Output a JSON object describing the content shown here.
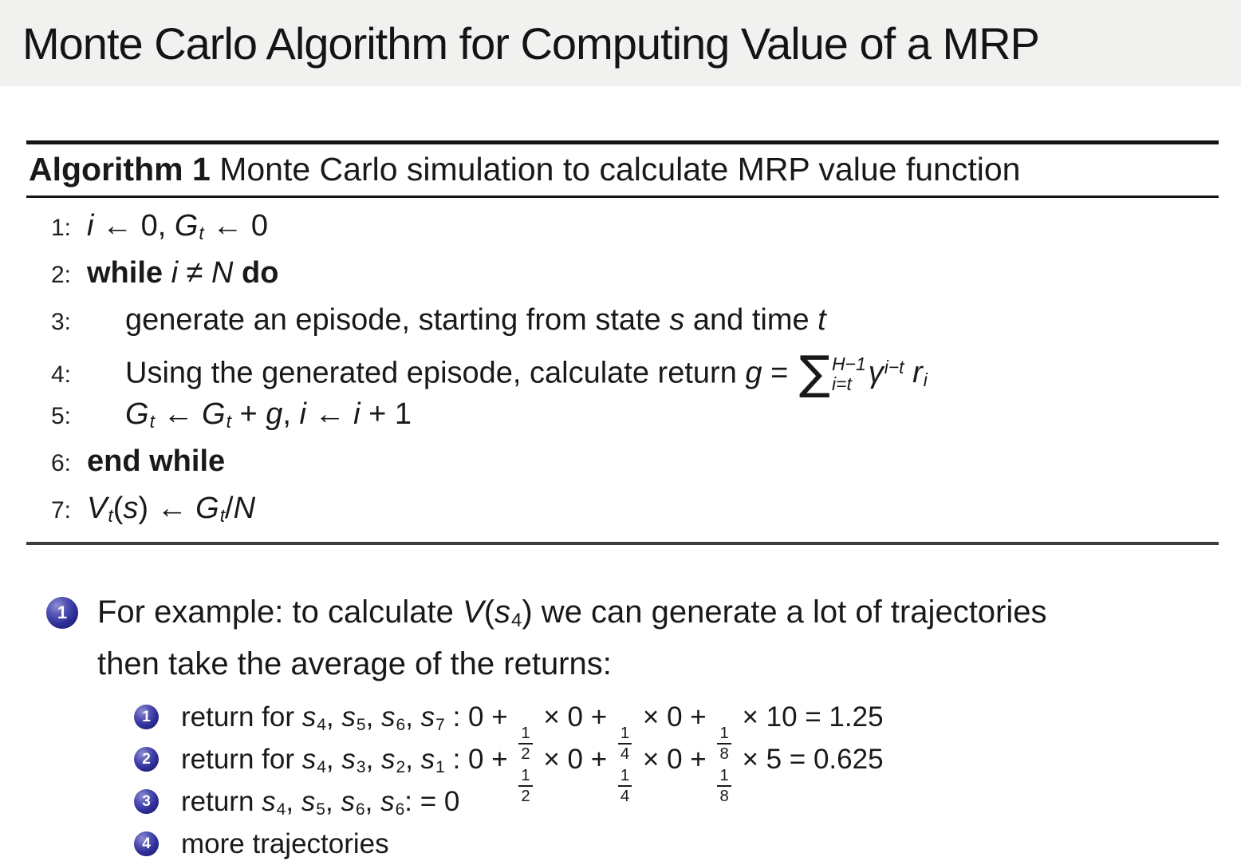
{
  "title": "Monte Carlo Algorithm for Computing Value of a MRP",
  "colors": {
    "page_bg": "#ffffff",
    "title_band_bg": "#f1f1ef",
    "text": "#191919",
    "rule": "#151515",
    "bottom_rule": "#3d3d3d",
    "ball_blue": "#30309c",
    "ball_dark": "#141457",
    "ball_light": "#8f8fd2"
  },
  "symbols": {
    "sum": "∑"
  },
  "algorithm": {
    "caption_bold": "Algorithm 1",
    "caption_rest": " Monte Carlo simulation to calculate MRP value function",
    "lines": [
      {
        "num": "1:",
        "tokens": [
          {
            "t": "i",
            "v": "i"
          },
          {
            "t": "t",
            "v": " ← 0, "
          },
          {
            "t": "sb",
            "b": "G",
            "s": "t"
          },
          {
            "t": "t",
            "v": " ← 0"
          }
        ]
      },
      {
        "num": "2:",
        "tokens": [
          {
            "t": "b",
            "v": "while "
          },
          {
            "t": "i",
            "v": "i"
          },
          {
            "t": "t",
            "v": " ≠ "
          },
          {
            "t": "i",
            "v": "N"
          },
          {
            "t": "b",
            "v": " do"
          }
        ]
      },
      {
        "num": "3:",
        "tokens": [
          {
            "t": "t",
            "v": "generate an episode, starting from state "
          },
          {
            "t": "i",
            "v": "s"
          },
          {
            "t": "t",
            "v": " and time "
          },
          {
            "t": "i",
            "v": "t"
          }
        ]
      },
      {
        "num": "4:",
        "tokens": [
          {
            "t": "t",
            "v": "Using the generated episode, calculate return "
          },
          {
            "t": "i",
            "v": "g"
          },
          {
            "t": "t",
            "v": " = "
          },
          {
            "t": "sum",
            "sup": "H−1",
            "sub": "i=t"
          },
          {
            "t": "sp",
            "b": "γ",
            "s": "i−t"
          },
          {
            "t": "t",
            "v": " "
          },
          {
            "t": "sb",
            "b": "r",
            "s": "i"
          }
        ]
      },
      {
        "num": "5:",
        "tokens": [
          {
            "t": "sb",
            "b": "G",
            "s": "t"
          },
          {
            "t": "t",
            "v": " ← "
          },
          {
            "t": "sb",
            "b": "G",
            "s": "t"
          },
          {
            "t": "t",
            "v": " + "
          },
          {
            "t": "i",
            "v": "g"
          },
          {
            "t": "t",
            "v": ", "
          },
          {
            "t": "i",
            "v": "i"
          },
          {
            "t": "t",
            "v": " ← "
          },
          {
            "t": "i",
            "v": "i"
          },
          {
            "t": "t",
            "v": " + 1"
          }
        ]
      },
      {
        "num": "6:",
        "tokens": [
          {
            "t": "b",
            "v": "end while"
          }
        ]
      },
      {
        "num": "7:",
        "tokens": [
          {
            "t": "sb",
            "b": "V",
            "s": "t"
          },
          {
            "t": "t",
            "v": "("
          },
          {
            "t": "i",
            "v": "s"
          },
          {
            "t": "t",
            "v": ") ← "
          },
          {
            "t": "sb",
            "b": "G",
            "s": "t"
          },
          {
            "t": "t",
            "v": "/"
          },
          {
            "t": "i",
            "v": "N"
          }
        ]
      }
    ]
  },
  "bullets": {
    "main": {
      "marker": "1",
      "tokens": [
        {
          "t": "t",
          "v": "For example: to calculate "
        },
        {
          "t": "i",
          "v": "V"
        },
        {
          "t": "t",
          "v": "("
        },
        {
          "t": "sb",
          "b": "s",
          "s": "4"
        },
        {
          "t": "t",
          "v": ") we can generate a lot of trajectories"
        },
        {
          "t": "br"
        },
        {
          "t": "t",
          "v": "then take the average of the returns:"
        }
      ]
    },
    "sub_items": [
      {
        "marker": "1",
        "tokens": [
          {
            "t": "t",
            "v": "return for "
          },
          {
            "t": "sb",
            "b": "s",
            "s": "4"
          },
          {
            "t": "t",
            "v": ", "
          },
          {
            "t": "sb",
            "b": "s",
            "s": "5"
          },
          {
            "t": "t",
            "v": ", "
          },
          {
            "t": "sb",
            "b": "s",
            "s": "6"
          },
          {
            "t": "t",
            "v": ", "
          },
          {
            "t": "sb",
            "b": "s",
            "s": "7"
          },
          {
            "t": "t",
            "v": " : 0 + "
          },
          {
            "t": "frac",
            "n": "1",
            "d": "2"
          },
          {
            "t": "t",
            "v": " × 0 + "
          },
          {
            "t": "frac",
            "n": "1",
            "d": "4"
          },
          {
            "t": "t",
            "v": " × 0 + "
          },
          {
            "t": "frac",
            "n": "1",
            "d": "8"
          },
          {
            "t": "t",
            "v": " × 10 = 1.25"
          }
        ]
      },
      {
        "marker": "2",
        "tokens": [
          {
            "t": "t",
            "v": "return for "
          },
          {
            "t": "sb",
            "b": "s",
            "s": "4"
          },
          {
            "t": "t",
            "v": ", "
          },
          {
            "t": "sb",
            "b": "s",
            "s": "3"
          },
          {
            "t": "t",
            "v": ", "
          },
          {
            "t": "sb",
            "b": "s",
            "s": "2"
          },
          {
            "t": "t",
            "v": ", "
          },
          {
            "t": "sb",
            "b": "s",
            "s": "1"
          },
          {
            "t": "t",
            "v": " : 0 + "
          },
          {
            "t": "frac",
            "n": "1",
            "d": "2"
          },
          {
            "t": "t",
            "v": " × 0 + "
          },
          {
            "t": "frac",
            "n": "1",
            "d": "4"
          },
          {
            "t": "t",
            "v": " × 0 + "
          },
          {
            "t": "frac",
            "n": "1",
            "d": "8"
          },
          {
            "t": "t",
            "v": " × 5 = 0.625"
          }
        ]
      },
      {
        "marker": "3",
        "tokens": [
          {
            "t": "t",
            "v": "return "
          },
          {
            "t": "sb",
            "b": "s",
            "s": "4"
          },
          {
            "t": "t",
            "v": ", "
          },
          {
            "t": "sb",
            "b": "s",
            "s": "5"
          },
          {
            "t": "t",
            "v": ", "
          },
          {
            "t": "sb",
            "b": "s",
            "s": "6"
          },
          {
            "t": "t",
            "v": ", "
          },
          {
            "t": "sb",
            "b": "s",
            "s": "6"
          },
          {
            "t": "t",
            "v": ": = 0"
          }
        ]
      },
      {
        "marker": "4",
        "tokens": [
          {
            "t": "t",
            "v": "more trajectories"
          }
        ]
      }
    ]
  }
}
